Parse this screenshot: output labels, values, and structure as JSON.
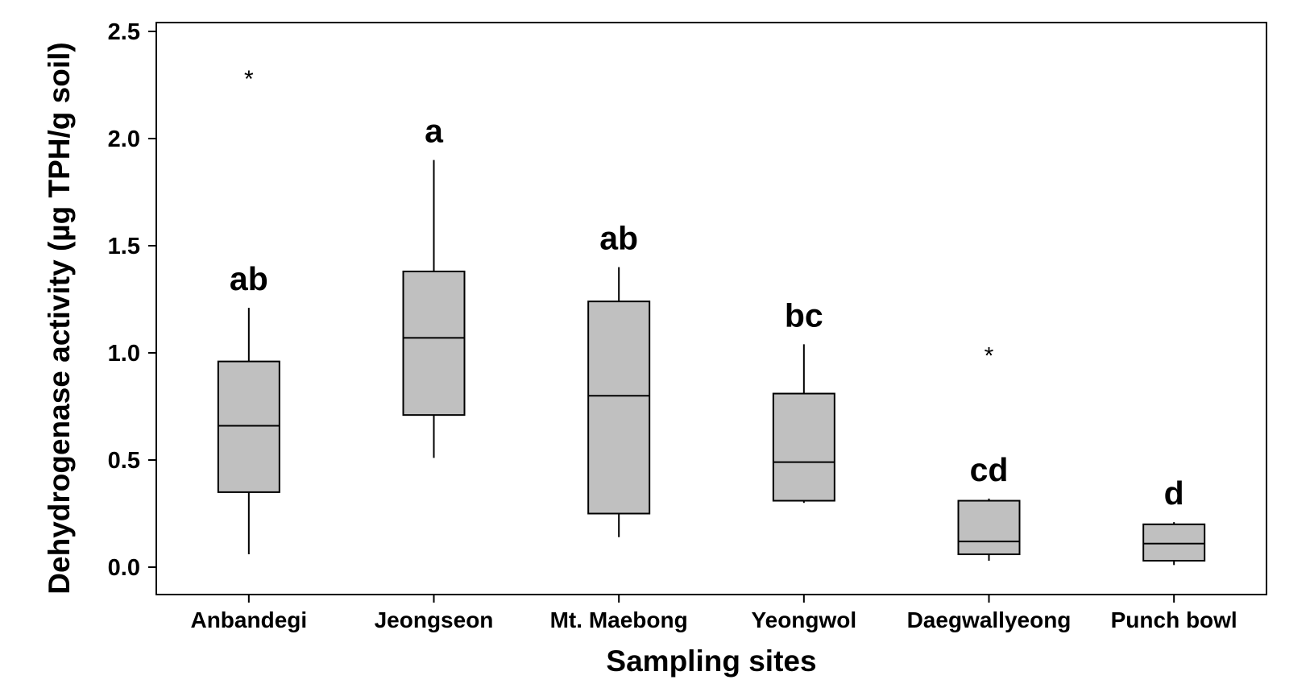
{
  "chart_data": {
    "type": "boxplot",
    "xlabel": "Sampling sites",
    "ylabel": "Dehydrogenase activity (µg TPH/g soil)",
    "ylim": [
      -0.12,
      2.53
    ],
    "yticks": [
      0.0,
      0.5,
      1.0,
      1.5,
      2.0,
      2.5
    ],
    "ytick_labels": [
      "0.0",
      "0.5",
      "1.0",
      "1.5",
      "2.0",
      "2.5"
    ],
    "grid": false,
    "box_color": "#c0c0c0",
    "line_color": "#000000",
    "categories": [
      "Anbandegi",
      "Jeongseon",
      "Mt. Maebong",
      "Yeongwol",
      "Daegwallyeong",
      "Punch bowl"
    ],
    "boxes": [
      {
        "category": "Anbandegi",
        "whisker_low": 0.06,
        "q1": 0.35,
        "median": 0.66,
        "q3": 0.96,
        "whisker_high": 1.21,
        "outliers": [
          2.3
        ],
        "letter": "ab"
      },
      {
        "category": "Jeongseon",
        "whisker_low": 0.51,
        "q1": 0.71,
        "median": 1.07,
        "q3": 1.38,
        "whisker_high": 1.9,
        "outliers": [],
        "letter": "a"
      },
      {
        "category": "Mt. Maebong",
        "whisker_low": 0.14,
        "q1": 0.25,
        "median": 0.8,
        "q3": 1.24,
        "whisker_high": 1.4,
        "outliers": [],
        "letter": "ab"
      },
      {
        "category": "Yeongwol",
        "whisker_low": 0.3,
        "q1": 0.31,
        "median": 0.49,
        "q3": 0.81,
        "whisker_high": 1.04,
        "outliers": [],
        "letter": "bc"
      },
      {
        "category": "Daegwallyeong",
        "whisker_low": 0.03,
        "q1": 0.06,
        "median": 0.12,
        "q3": 0.31,
        "whisker_high": 0.32,
        "outliers": [
          1.01
        ],
        "letter": "cd"
      },
      {
        "category": "Punch bowl",
        "whisker_low": 0.01,
        "q1": 0.03,
        "median": 0.11,
        "q3": 0.2,
        "whisker_high": 0.21,
        "outliers": [],
        "letter": "d"
      }
    ]
  }
}
